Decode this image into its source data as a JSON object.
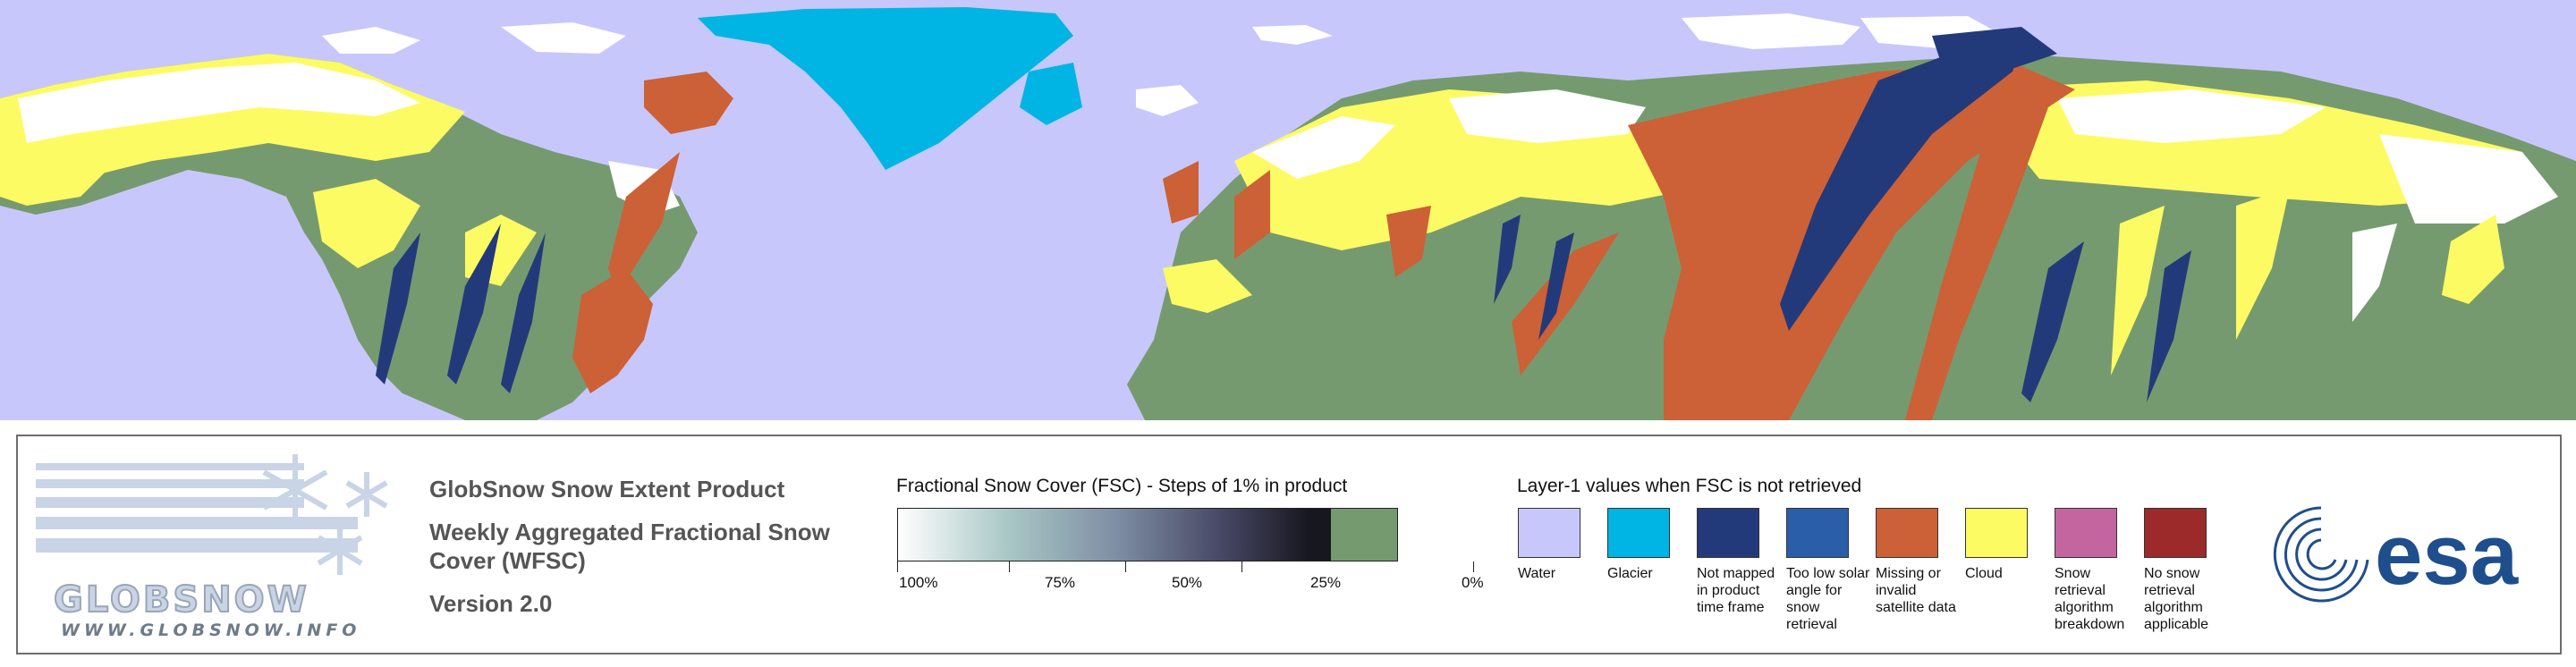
{
  "product": {
    "title": "GlobSnow Snow Extent Product",
    "subtitle_line1": "Weekly Aggregated Fractional Snow",
    "subtitle_line2": "Cover (WFSC)",
    "version": "Version 2.0"
  },
  "logo": {
    "wordmark": "GLOBSNOW",
    "url": "WWW.GLOBSNOW.INFO",
    "esa": "esa"
  },
  "fsc_legend": {
    "title": "Fractional Snow Cover (FSC) - Steps of 1% in product",
    "ticks": [
      "100%",
      "75%",
      "50%",
      "25%",
      "0%"
    ]
  },
  "layer1_legend": {
    "title": "Layer-1 values when FSC is not retrieved",
    "items": [
      {
        "label": "Water",
        "color": "#c8c7fb"
      },
      {
        "label": "Glacier",
        "color": "#00b4e4"
      },
      {
        "label": "Not mapped in product time frame",
        "color": "#233a7a"
      },
      {
        "label": "Too low solar angle for snow retrieval",
        "color": "#2a5ea9"
      },
      {
        "label": "Missing or invalid satellite data",
        "color": "#cc6036"
      },
      {
        "label": "Cloud",
        "color": "#fdfb63"
      },
      {
        "label": "Snow retrieval algorithm breakdown",
        "color": "#c5659f"
      },
      {
        "label": "No snow retrieval algorithm applicable",
        "color": "#9c2a2a"
      }
    ]
  },
  "map_colors": {
    "water": "#c8c7fb",
    "snow_free": "#769a70",
    "snow": "#ffffff",
    "cloud": "#fdfb63",
    "glacier": "#00b4e4",
    "missing": "#cc6036",
    "not_mapped": "#233a7a"
  }
}
